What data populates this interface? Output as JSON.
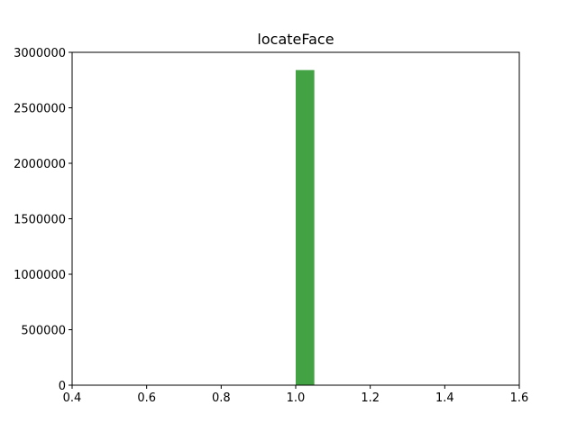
{
  "chart_data": {
    "type": "bar",
    "title": "locateFace",
    "xlabel": "",
    "ylabel": "",
    "xlim": [
      0.4,
      1.6
    ],
    "ylim": [
      0,
      3000000
    ],
    "x_ticks": [
      "0.4",
      "0.6",
      "0.8",
      "1.0",
      "1.2",
      "1.4",
      "1.6"
    ],
    "y_ticks": [
      "0",
      "500000",
      "1000000",
      "1500000",
      "2000000",
      "2500000",
      "3000000"
    ],
    "bars": [
      {
        "x_start": 1.0,
        "x_end": 1.05,
        "value": 2840000
      }
    ],
    "bar_color": "#43a243",
    "grid": false
  }
}
